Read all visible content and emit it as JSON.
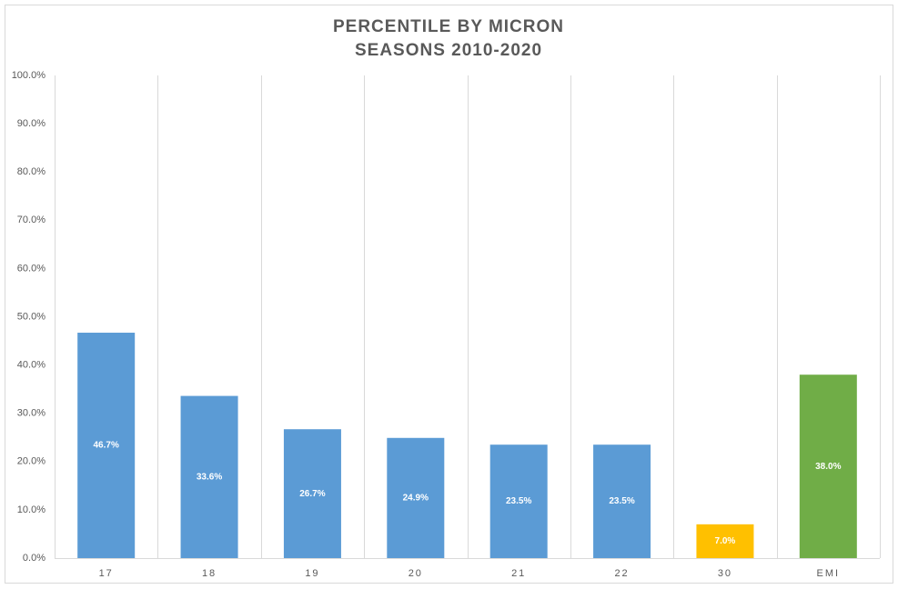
{
  "chart_data": {
    "type": "bar",
    "title": "PERCENTILE BY MICRON",
    "subtitle": "SEASONS 2010-2020",
    "categories": [
      "17",
      "18",
      "19",
      "20",
      "21",
      "22",
      "30",
      "EMI"
    ],
    "values": [
      46.7,
      33.6,
      26.7,
      24.9,
      23.5,
      23.5,
      7.0,
      38.0
    ],
    "value_labels": [
      "46.7%",
      "33.6%",
      "26.7%",
      "24.9%",
      "23.5%",
      "23.5%",
      "7.0%",
      "38.0%"
    ],
    "colors": [
      "#5b9bd5",
      "#5b9bd5",
      "#5b9bd5",
      "#5b9bd5",
      "#5b9bd5",
      "#5b9bd5",
      "#ffc000",
      "#70ad47"
    ],
    "ylim": [
      0,
      100
    ],
    "yticks": [
      {
        "value": 0,
        "label": "0.0%"
      },
      {
        "value": 10,
        "label": "10.0%"
      },
      {
        "value": 20,
        "label": "20.0%"
      },
      {
        "value": 30,
        "label": "30.0%"
      },
      {
        "value": 40,
        "label": "40.0%"
      },
      {
        "value": 50,
        "label": "50.0%"
      },
      {
        "value": 60,
        "label": "60.0%"
      },
      {
        "value": 70,
        "label": "70.0%"
      },
      {
        "value": 80,
        "label": "80.0%"
      },
      {
        "value": 90,
        "label": "90.0%"
      },
      {
        "value": 100,
        "label": "100.0%"
      }
    ]
  }
}
